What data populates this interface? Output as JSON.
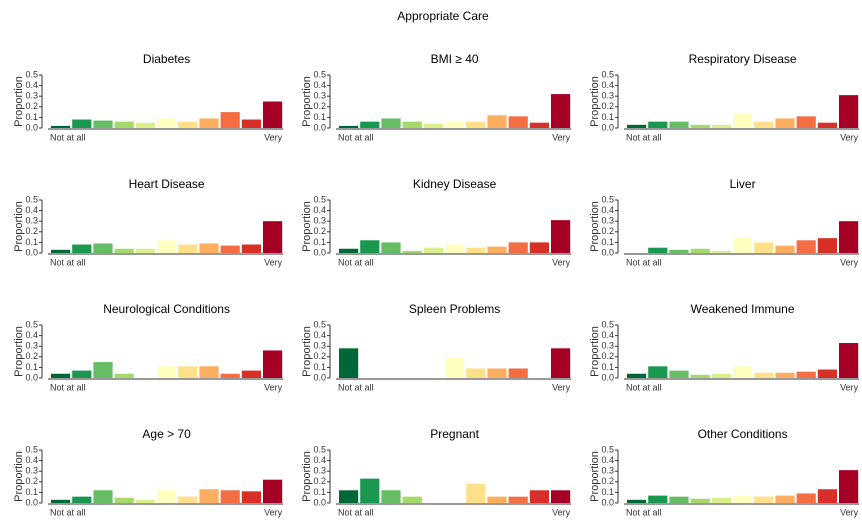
{
  "title": "Appropriate Care",
  "chart_data": [
    {
      "type": "bar",
      "title": "Diabetes",
      "y_label": "Proportion",
      "categories": [
        "Not at all",
        null,
        null,
        null,
        null,
        null,
        null,
        null,
        null,
        null,
        "Very"
      ],
      "values": [
        0.02,
        0.08,
        0.07,
        0.06,
        0.05,
        0.09,
        0.06,
        0.09,
        0.15,
        0.08,
        0.25
      ],
      "colors": [
        "#006837",
        "#1a9850",
        "#66bd63",
        "#a6d96a",
        "#d9ef8b",
        "#ffffbf",
        "#fee08b",
        "#fdae61",
        "#f46d43",
        "#d73027",
        "#a50026"
      ],
      "ylim": [
        0,
        0.5
      ],
      "yticks": [
        {
          "value": 0,
          "label": "0.0"
        },
        0.1,
        0.2,
        0.3,
        0.4,
        0.5
      ]
    },
    {
      "type": "bar",
      "title": "BMI ≥ 40",
      "y_label": "Proportion",
      "categories": [
        "Not at all",
        null,
        null,
        null,
        null,
        null,
        null,
        null,
        null,
        null,
        "Very"
      ],
      "values": [
        0.02,
        0.06,
        0.09,
        0.06,
        0.04,
        0.06,
        0.06,
        0.12,
        0.11,
        0.05,
        0.32
      ],
      "colors": [
        "#006837",
        "#1a9850",
        "#66bd63",
        "#a6d96a",
        "#d9ef8b",
        "#ffffbf",
        "#fee08b",
        "#fdae61",
        "#f46d43",
        "#d73027",
        "#a50026"
      ],
      "ylim": [
        0,
        0.5
      ],
      "yticks": [
        {
          "value": 0,
          "label": "0.0"
        },
        0.1,
        0.2,
        0.3,
        0.4,
        0.5
      ]
    },
    {
      "type": "bar",
      "title": "Respiratory Disease",
      "y_label": "Proportion",
      "categories": [
        "Not at all",
        null,
        null,
        null,
        null,
        null,
        null,
        null,
        null,
        null,
        "Very"
      ],
      "values": [
        0.03,
        0.06,
        0.06,
        0.03,
        0.03,
        0.14,
        0.06,
        0.09,
        0.11,
        0.05,
        0.31
      ],
      "colors": [
        "#006837",
        "#1a9850",
        "#66bd63",
        "#a6d96a",
        "#d9ef8b",
        "#ffffbf",
        "#fee08b",
        "#fdae61",
        "#f46d43",
        "#d73027",
        "#a50026"
      ],
      "ylim": [
        0,
        0.5
      ],
      "yticks": [
        {
          "value": 0,
          "label": "0.0"
        },
        0.1,
        0.2,
        0.3,
        0.4,
        0.5
      ]
    },
    {
      "type": "bar",
      "title": "Heart Disease",
      "y_label": "Proportion",
      "categories": [
        "Not at all",
        null,
        null,
        null,
        null,
        null,
        null,
        null,
        null,
        null,
        "Very"
      ],
      "values": [
        0.03,
        0.08,
        0.09,
        0.04,
        0.04,
        0.12,
        0.08,
        0.09,
        0.07,
        0.08,
        0.3
      ],
      "colors": [
        "#006837",
        "#1a9850",
        "#66bd63",
        "#a6d96a",
        "#d9ef8b",
        "#ffffbf",
        "#fee08b",
        "#fdae61",
        "#f46d43",
        "#d73027",
        "#a50026"
      ],
      "ylim": [
        0,
        0.5
      ],
      "yticks": [
        {
          "value": 0,
          "label": "0.0"
        },
        0.1,
        0.2,
        0.3,
        0.4,
        0.5
      ]
    },
    {
      "type": "bar",
      "title": "Kidney Disease",
      "y_label": "Proportion",
      "categories": [
        "Not at all",
        null,
        null,
        null,
        null,
        null,
        null,
        null,
        null,
        null,
        "Very"
      ],
      "values": [
        0.04,
        0.12,
        0.1,
        0.02,
        0.05,
        0.08,
        0.05,
        0.06,
        0.1,
        0.1,
        0.31
      ],
      "colors": [
        "#006837",
        "#1a9850",
        "#66bd63",
        "#a6d96a",
        "#d9ef8b",
        "#ffffbf",
        "#fee08b",
        "#fdae61",
        "#f46d43",
        "#d73027",
        "#a50026"
      ],
      "ylim": [
        0,
        0.5
      ],
      "yticks": [
        {
          "value": 0,
          "label": "0.0"
        },
        0.1,
        0.2,
        0.3,
        0.4,
        0.5
      ]
    },
    {
      "type": "bar",
      "title": "Liver",
      "y_label": "Proportion",
      "categories": [
        "Not at all",
        null,
        null,
        null,
        null,
        null,
        null,
        null,
        null,
        null,
        "Very"
      ],
      "values": [
        0.0,
        0.05,
        0.03,
        0.04,
        0.02,
        0.15,
        0.1,
        0.07,
        0.12,
        0.14,
        0.3
      ],
      "colors": [
        "#006837",
        "#1a9850",
        "#66bd63",
        "#a6d96a",
        "#d9ef8b",
        "#ffffbf",
        "#fee08b",
        "#fdae61",
        "#f46d43",
        "#d73027",
        "#a50026"
      ],
      "ylim": [
        0,
        0.5
      ],
      "yticks": [
        {
          "value": 0,
          "label": "0.0"
        },
        0.1,
        0.2,
        0.3,
        0.4,
        0.5
      ]
    },
    {
      "type": "bar",
      "title": "Neurological Conditions",
      "y_label": "Proportion",
      "categories": [
        "Not at all",
        null,
        null,
        null,
        null,
        null,
        null,
        null,
        null,
        null,
        "Very"
      ],
      "values": [
        0.04,
        0.07,
        0.15,
        0.04,
        0.0,
        0.11,
        0.11,
        0.11,
        0.04,
        0.07,
        0.26
      ],
      "colors": [
        "#006837",
        "#1a9850",
        "#66bd63",
        "#a6d96a",
        "#d9ef8b",
        "#ffffbf",
        "#fee08b",
        "#fdae61",
        "#f46d43",
        "#d73027",
        "#a50026"
      ],
      "ylim": [
        0,
        0.5
      ],
      "yticks": [
        {
          "value": 0,
          "label": "0.0"
        },
        0.1,
        0.2,
        0.3,
        0.4,
        0.5
      ]
    },
    {
      "type": "bar",
      "title": "Spleen Problems",
      "y_label": "Proportion",
      "categories": [
        "Not at all",
        null,
        null,
        null,
        null,
        null,
        null,
        null,
        null,
        null,
        "Very"
      ],
      "values": [
        0.28,
        0.0,
        0.0,
        0.0,
        0.0,
        0.19,
        0.09,
        0.09,
        0.09,
        0.0,
        0.28
      ],
      "colors": [
        "#006837",
        "#1a9850",
        "#66bd63",
        "#a6d96a",
        "#d9ef8b",
        "#ffffbf",
        "#fee08b",
        "#fdae61",
        "#f46d43",
        "#d73027",
        "#a50026"
      ],
      "ylim": [
        0,
        0.5
      ],
      "yticks": [
        {
          "value": 0,
          "label": "0.0"
        },
        0.1,
        0.2,
        0.3,
        0.4,
        0.5
      ]
    },
    {
      "type": "bar",
      "title": "Weakened Immune",
      "y_label": "Proportion",
      "categories": [
        "Not at all",
        null,
        null,
        null,
        null,
        null,
        null,
        null,
        null,
        null,
        "Very"
      ],
      "values": [
        0.04,
        0.11,
        0.07,
        0.03,
        0.04,
        0.11,
        0.05,
        0.05,
        0.06,
        0.08,
        0.33
      ],
      "colors": [
        "#006837",
        "#1a9850",
        "#66bd63",
        "#a6d96a",
        "#d9ef8b",
        "#ffffbf",
        "#fee08b",
        "#fdae61",
        "#f46d43",
        "#d73027",
        "#a50026"
      ],
      "ylim": [
        0,
        0.5
      ],
      "yticks": [
        {
          "value": 0,
          "label": "0.0"
        },
        0.1,
        0.2,
        0.3,
        0.4,
        0.5
      ]
    },
    {
      "type": "bar",
      "title": "Age > 70",
      "y_label": "Proportion",
      "categories": [
        "Not at all",
        null,
        null,
        null,
        null,
        null,
        null,
        null,
        null,
        null,
        "Very"
      ],
      "values": [
        0.03,
        0.06,
        0.12,
        0.05,
        0.03,
        0.12,
        0.06,
        0.13,
        0.12,
        0.11,
        0.22
      ],
      "colors": [
        "#006837",
        "#1a9850",
        "#66bd63",
        "#a6d96a",
        "#d9ef8b",
        "#ffffbf",
        "#fee08b",
        "#fdae61",
        "#f46d43",
        "#d73027",
        "#a50026"
      ],
      "ylim": [
        0,
        0.5
      ],
      "yticks": [
        {
          "value": 0,
          "label": "0.0"
        },
        0.1,
        0.2,
        0.3,
        0.4,
        0.5
      ]
    },
    {
      "type": "bar",
      "title": "Pregnant",
      "y_label": "Proportion",
      "categories": [
        "Not at all",
        null,
        null,
        null,
        null,
        null,
        null,
        null,
        null,
        null,
        "Very"
      ],
      "values": [
        0.12,
        0.23,
        0.12,
        0.06,
        0.0,
        0.0,
        0.18,
        0.06,
        0.06,
        0.12,
        0.12
      ],
      "colors": [
        "#006837",
        "#1a9850",
        "#66bd63",
        "#a6d96a",
        "#d9ef8b",
        "#ffffbf",
        "#fee08b",
        "#fdae61",
        "#f46d43",
        "#d73027",
        "#a50026"
      ],
      "ylim": [
        0,
        0.5
      ],
      "yticks": [
        {
          "value": 0,
          "label": "0.0"
        },
        0.1,
        0.2,
        0.3,
        0.4,
        0.5
      ]
    },
    {
      "type": "bar",
      "title": "Other Conditions",
      "y_label": "Proportion",
      "categories": [
        "Not at all",
        null,
        null,
        null,
        null,
        null,
        null,
        null,
        null,
        null,
        "Very"
      ],
      "values": [
        0.03,
        0.07,
        0.06,
        0.04,
        0.05,
        0.07,
        0.06,
        0.07,
        0.09,
        0.13,
        0.31
      ],
      "colors": [
        "#006837",
        "#1a9850",
        "#66bd63",
        "#a6d96a",
        "#d9ef8b",
        "#ffffbf",
        "#fee08b",
        "#fdae61",
        "#f46d43",
        "#d73027",
        "#a50026"
      ],
      "ylim": [
        0,
        0.5
      ],
      "yticks": [
        {
          "value": 0,
          "label": "0.0"
        },
        0.1,
        0.2,
        0.3,
        0.4,
        0.5
      ]
    }
  ]
}
